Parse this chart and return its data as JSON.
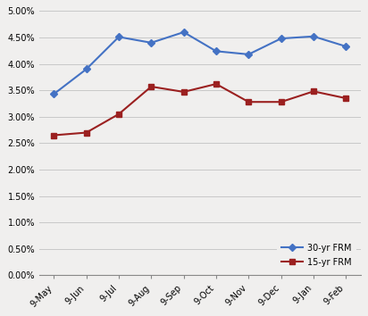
{
  "x_labels": [
    "9-May",
    "9-Jun",
    "9-Jul",
    "9-Aug",
    "9-Sep",
    "9-Oct",
    "9-Nov",
    "9-Dec",
    "9-Jan",
    "9-Feb"
  ],
  "series_30yr": [
    0.0343,
    0.039,
    0.0451,
    0.044,
    0.046,
    0.0424,
    0.0418,
    0.0448,
    0.0452,
    0.0433
  ],
  "series_15yr": [
    0.0265,
    0.027,
    0.0305,
    0.0357,
    0.0347,
    0.0362,
    0.0328,
    0.0328,
    0.0348,
    0.0335
  ],
  "color_30yr": "#4472C4",
  "color_15yr": "#9B2020",
  "bg_color": "#F0EFEE",
  "ylim": [
    0.0,
    0.05
  ],
  "ytick_step": 0.005,
  "legend_labels": [
    "30-yr FRM",
    "15-yr FRM"
  ]
}
